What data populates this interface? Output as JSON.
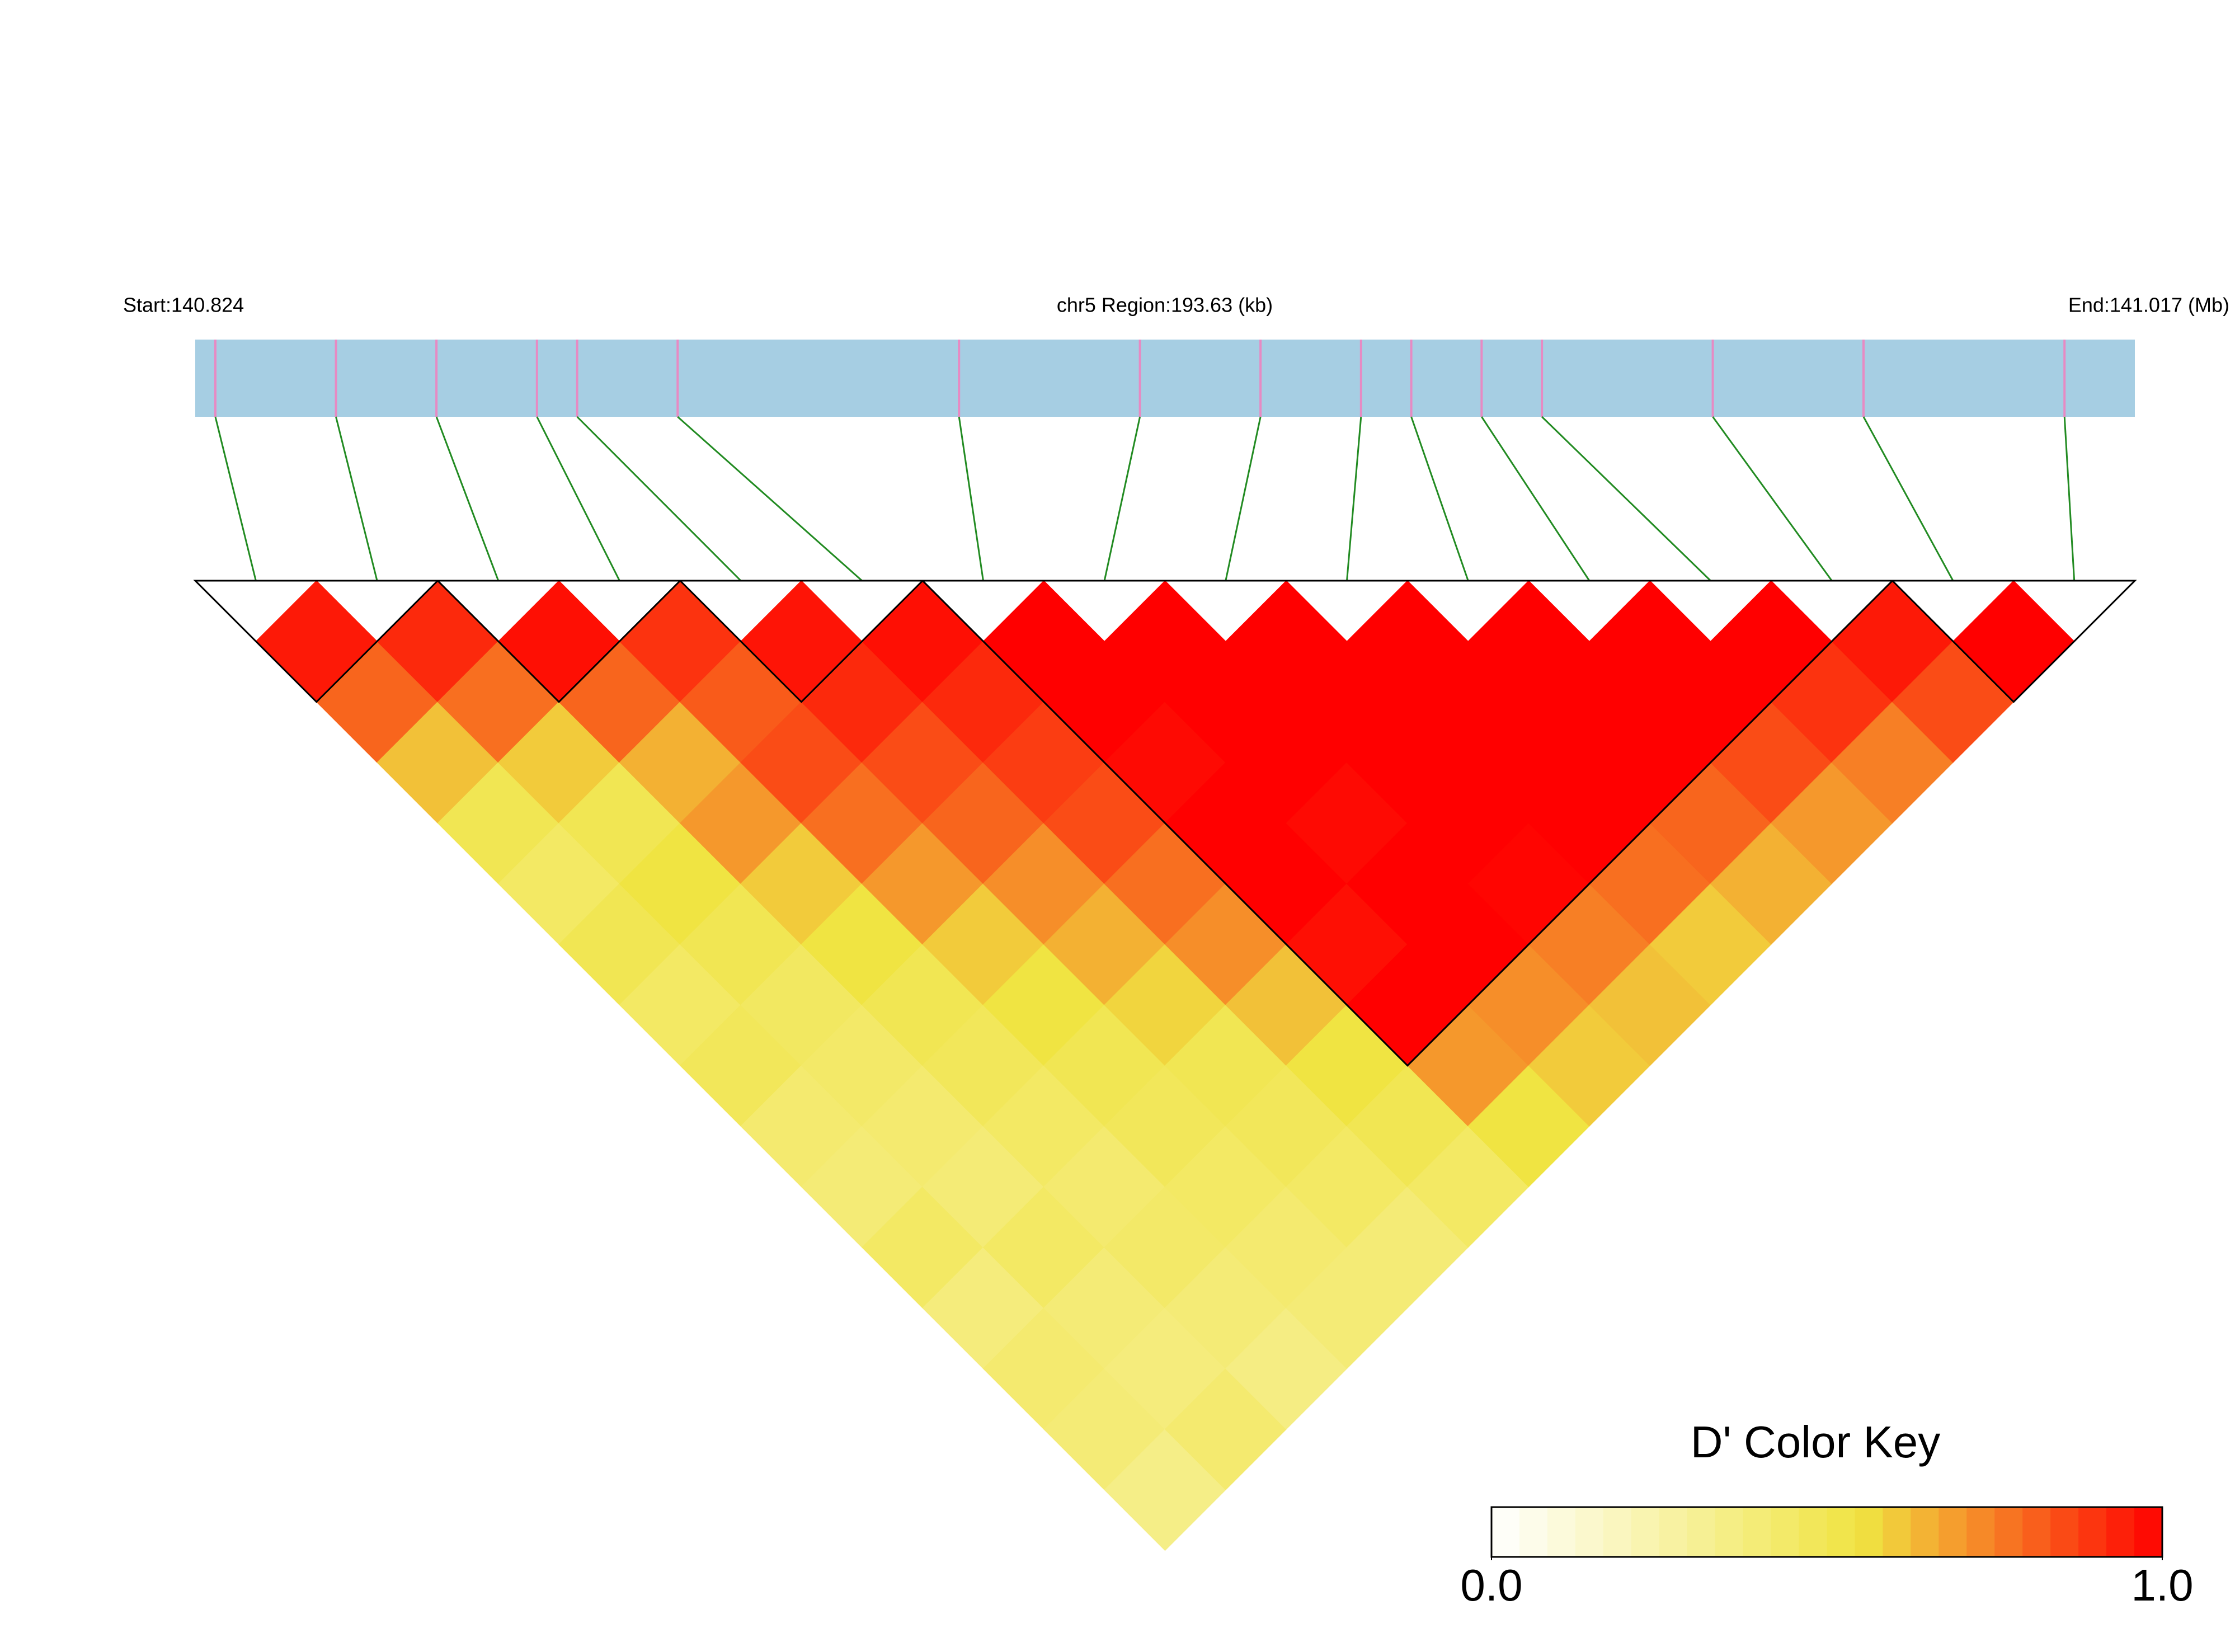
{
  "chart_data": {
    "type": "ld-heatmap",
    "start_label": "Start:140.824",
    "region_label": "chr5 Region:193.63 (kb)",
    "end_label": "End:141.017 (Mb)",
    "key_title": "D' Color Key",
    "xlim": [
      140.824,
      141.017
    ],
    "snp_positions": [
      140.826,
      140.838,
      140.848,
      140.858,
      140.862,
      140.872,
      140.9,
      140.918,
      140.93,
      140.94,
      140.945,
      140.952,
      140.958,
      140.975,
      140.99,
      141.01
    ],
    "dprime": [
      [
        0.95,
        0.8,
        0.62,
        0.5,
        0.45,
        0.5,
        0.45,
        0.48,
        0.42,
        0.4,
        0.45,
        0.38,
        0.42,
        0.4,
        0.35
      ],
      [
        0.92,
        0.78,
        0.6,
        0.5,
        0.55,
        0.5,
        0.46,
        0.44,
        0.42,
        0.4,
        0.45,
        0.4,
        0.38,
        0.42
      ],
      [
        0.97,
        0.8,
        0.65,
        0.7,
        0.6,
        0.55,
        0.5,
        0.48,
        0.45,
        0.42,
        0.44,
        0.4,
        0.36
      ],
      [
        0.9,
        0.82,
        0.85,
        0.78,
        0.7,
        0.6,
        0.55,
        0.5,
        0.48,
        0.45,
        0.42,
        0.4
      ],
      [
        0.96,
        0.92,
        0.85,
        0.8,
        0.72,
        0.65,
        0.58,
        0.5,
        0.48,
        0.45,
        0.4
      ],
      [
        0.97,
        0.92,
        0.88,
        0.85,
        0.78,
        0.72,
        0.62,
        0.55,
        0.5,
        0.45
      ],
      [
        1,
        1,
        0.98,
        1,
        1,
        0.97,
        1,
        0.7,
        0.55
      ],
      [
        1,
        1,
        1,
        0.98,
        1,
        1,
        0.72,
        0.6
      ],
      [
        1,
        1,
        1,
        1,
        0.99,
        0.75,
        0.62
      ],
      [
        1,
        1,
        1,
        1,
        0.78,
        0.6
      ],
      [
        1,
        1,
        1,
        0.8,
        0.65
      ],
      [
        1,
        1,
        0.85,
        0.7
      ],
      [
        1,
        0.9,
        0.75
      ],
      [
        0.95,
        0.85
      ],
      [
        1
      ]
    ],
    "blocks": [
      [
        0,
        1
      ],
      [
        2,
        3
      ],
      [
        4,
        5
      ],
      [
        6,
        13
      ],
      [
        14,
        15
      ]
    ],
    "clim": [
      0,
      1
    ],
    "colorbar_ticks": [
      {
        "value": 0,
        "label": "0.0"
      },
      {
        "value": 1,
        "label": "1.0"
      }
    ],
    "color_stops": [
      {
        "value": 0,
        "color": "#ffffff"
      },
      {
        "value": 0.55,
        "color": "#f0e442"
      },
      {
        "value": 1,
        "color": "#ff0000"
      }
    ],
    "band_color": "#a6cee3",
    "snp_color": "#e78ac3",
    "link_color": "#228b22"
  }
}
